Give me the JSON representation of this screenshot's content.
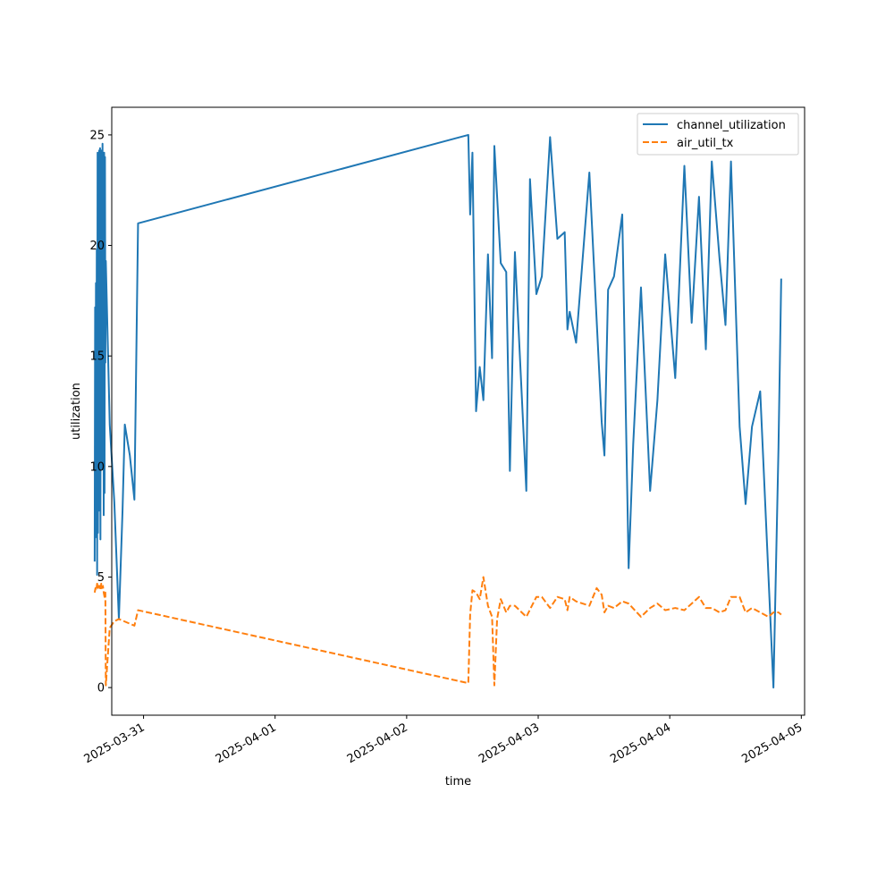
{
  "chart_data": {
    "type": "line",
    "title": "",
    "xlabel": "time",
    "ylabel": "utilization",
    "x_axis_type": "datetime",
    "xlim": [
      "2025-03-30T18:12",
      "2025-04-05T00:36"
    ],
    "ylim": [
      -1.25,
      26.25
    ],
    "x_ticks": [
      "2025-03-31",
      "2025-04-01",
      "2025-04-02",
      "2025-04-03",
      "2025-04-04",
      "2025-04-05"
    ],
    "y_ticks": [
      0,
      5,
      10,
      15,
      20,
      25
    ],
    "grid": false,
    "legend_position": "upper right",
    "series": [
      {
        "name": "channel_utilization",
        "color": "#1f77b4",
        "line_style": "solid",
        "points": [
          [
            "2025-03-30T15:05",
            5.7
          ],
          [
            "2025-03-30T15:10",
            17.2
          ],
          [
            "2025-03-30T15:14",
            6.8
          ],
          [
            "2025-03-30T15:19",
            18.3
          ],
          [
            "2025-03-30T15:23",
            9.8
          ],
          [
            "2025-03-30T15:28",
            19.8
          ],
          [
            "2025-03-30T15:32",
            5.1
          ],
          [
            "2025-03-30T15:37",
            24.2
          ],
          [
            "2025-03-30T15:41",
            7.0
          ],
          [
            "2025-03-30T15:46",
            22.5
          ],
          [
            "2025-03-30T15:50",
            8.0
          ],
          [
            "2025-03-30T15:55",
            24.3
          ],
          [
            "2025-03-30T15:59",
            12.3
          ],
          [
            "2025-03-30T16:04",
            24.4
          ],
          [
            "2025-03-30T16:08",
            6.7
          ],
          [
            "2025-03-30T16:13",
            23.5
          ],
          [
            "2025-03-30T16:17",
            11.0
          ],
          [
            "2025-03-30T16:22",
            24.3
          ],
          [
            "2025-03-30T16:26",
            9.9
          ],
          [
            "2025-03-30T16:31",
            24.6
          ],
          [
            "2025-03-30T16:35",
            10.2
          ],
          [
            "2025-03-30T16:40",
            23.9
          ],
          [
            "2025-03-30T16:44",
            7.8
          ],
          [
            "2025-03-30T16:49",
            24.2
          ],
          [
            "2025-03-30T16:53",
            8.8
          ],
          [
            "2025-03-30T16:58",
            24.0
          ],
          [
            "2025-03-30T17:02",
            14.7
          ],
          [
            "2025-03-30T17:07",
            19.3
          ],
          [
            "2025-03-30T17:50",
            11.9
          ],
          [
            "2025-03-30T18:40",
            8.4
          ],
          [
            "2025-03-30T19:30",
            3.1
          ],
          [
            "2025-03-30T20:10",
            8.0
          ],
          [
            "2025-03-30T20:35",
            11.9
          ],
          [
            "2025-03-30T21:30",
            10.5
          ],
          [
            "2025-03-30T22:20",
            8.5
          ],
          [
            "2025-03-30T23:00",
            21.0
          ],
          [
            "2025-04-02T11:15",
            25.0
          ],
          [
            "2025-04-02T11:35",
            21.4
          ],
          [
            "2025-04-02T12:00",
            24.2
          ],
          [
            "2025-04-02T12:40",
            12.5
          ],
          [
            "2025-04-02T13:20",
            14.5
          ],
          [
            "2025-04-02T14:00",
            13.0
          ],
          [
            "2025-04-02T14:50",
            19.6
          ],
          [
            "2025-04-02T15:35",
            14.9
          ],
          [
            "2025-04-02T16:00",
            24.5
          ],
          [
            "2025-04-02T17:10",
            19.2
          ],
          [
            "2025-04-02T18:10",
            18.8
          ],
          [
            "2025-04-02T18:50",
            9.8
          ],
          [
            "2025-04-02T19:45",
            19.7
          ],
          [
            "2025-04-02T21:50",
            8.9
          ],
          [
            "2025-04-02T22:30",
            23.0
          ],
          [
            "2025-04-02T23:40",
            17.8
          ],
          [
            "2025-04-03T00:40",
            18.6
          ],
          [
            "2025-04-03T02:10",
            24.9
          ],
          [
            "2025-04-03T03:30",
            20.3
          ],
          [
            "2025-04-03T04:50",
            20.6
          ],
          [
            "2025-04-03T05:20",
            16.2
          ],
          [
            "2025-04-03T05:45",
            17.0
          ],
          [
            "2025-04-03T06:55",
            15.6
          ],
          [
            "2025-04-03T09:20",
            23.3
          ],
          [
            "2025-04-03T11:35",
            12.0
          ],
          [
            "2025-04-03T12:05",
            10.5
          ],
          [
            "2025-04-03T12:45",
            18.0
          ],
          [
            "2025-04-03T13:50",
            18.6
          ],
          [
            "2025-04-03T15:20",
            21.4
          ],
          [
            "2025-04-03T16:30",
            5.4
          ],
          [
            "2025-04-03T17:20",
            11.0
          ],
          [
            "2025-04-03T18:45",
            18.1
          ],
          [
            "2025-04-03T20:25",
            8.9
          ],
          [
            "2025-04-03T21:45",
            13.0
          ],
          [
            "2025-04-03T23:10",
            19.6
          ],
          [
            "2025-04-04T01:00",
            14.0
          ],
          [
            "2025-04-04T02:40",
            23.6
          ],
          [
            "2025-04-04T04:00",
            16.5
          ],
          [
            "2025-04-04T05:20",
            22.2
          ],
          [
            "2025-04-04T06:35",
            15.3
          ],
          [
            "2025-04-04T07:40",
            23.8
          ],
          [
            "2025-04-04T09:05",
            19.4
          ],
          [
            "2025-04-04T10:10",
            16.4
          ],
          [
            "2025-04-04T11:10",
            23.8
          ],
          [
            "2025-04-04T12:45",
            11.8
          ],
          [
            "2025-04-04T13:50",
            8.3
          ],
          [
            "2025-04-04T15:00",
            11.8
          ],
          [
            "2025-04-04T16:30",
            13.4
          ],
          [
            "2025-04-04T18:55",
            0.0
          ],
          [
            "2025-04-04T19:50",
            10.8
          ],
          [
            "2025-04-04T20:20",
            18.5
          ]
        ]
      },
      {
        "name": "air_util_tx",
        "color": "#ff7f0e",
        "line_style": "dashed",
        "points": [
          [
            "2025-03-30T15:05",
            4.3
          ],
          [
            "2025-03-30T15:14",
            4.5
          ],
          [
            "2025-03-30T15:23",
            4.4
          ],
          [
            "2025-03-30T15:32",
            4.7
          ],
          [
            "2025-03-30T15:41",
            4.5
          ],
          [
            "2025-03-30T15:50",
            4.6
          ],
          [
            "2025-03-30T15:59",
            4.6
          ],
          [
            "2025-03-30T16:08",
            4.4
          ],
          [
            "2025-03-30T16:17",
            4.7
          ],
          [
            "2025-03-30T16:26",
            4.5
          ],
          [
            "2025-03-30T16:35",
            4.6
          ],
          [
            "2025-03-30T16:44",
            4.3
          ],
          [
            "2025-03-30T16:53",
            4.1
          ],
          [
            "2025-03-30T17:02",
            4.3
          ],
          [
            "2025-03-30T17:07",
            0.1
          ],
          [
            "2025-03-30T17:50",
            2.7
          ],
          [
            "2025-03-30T18:40",
            3.0
          ],
          [
            "2025-03-30T19:30",
            3.1
          ],
          [
            "2025-03-30T22:20",
            2.8
          ],
          [
            "2025-03-30T23:00",
            3.5
          ],
          [
            "2025-04-02T11:15",
            0.2
          ],
          [
            "2025-04-02T11:35",
            3.3
          ],
          [
            "2025-04-02T12:00",
            4.4
          ],
          [
            "2025-04-02T12:40",
            4.3
          ],
          [
            "2025-04-02T13:20",
            4.0
          ],
          [
            "2025-04-02T14:00",
            5.0
          ],
          [
            "2025-04-02T14:50",
            3.7
          ],
          [
            "2025-04-02T15:35",
            3.2
          ],
          [
            "2025-04-02T16:00",
            0.1
          ],
          [
            "2025-04-02T16:30",
            3.1
          ],
          [
            "2025-04-02T17:10",
            4.0
          ],
          [
            "2025-04-02T18:10",
            3.4
          ],
          [
            "2025-04-02T18:50",
            3.7
          ],
          [
            "2025-04-02T19:45",
            3.7
          ],
          [
            "2025-04-02T21:50",
            3.2
          ],
          [
            "2025-04-02T23:40",
            4.1
          ],
          [
            "2025-04-03T00:40",
            4.1
          ],
          [
            "2025-04-03T02:10",
            3.6
          ],
          [
            "2025-04-03T03:30",
            4.1
          ],
          [
            "2025-04-03T04:50",
            4.0
          ],
          [
            "2025-04-03T05:20",
            3.5
          ],
          [
            "2025-04-03T05:45",
            4.1
          ],
          [
            "2025-04-03T06:55",
            3.9
          ],
          [
            "2025-04-03T09:20",
            3.7
          ],
          [
            "2025-04-03T10:40",
            4.5
          ],
          [
            "2025-04-03T11:35",
            4.2
          ],
          [
            "2025-04-03T12:05",
            3.4
          ],
          [
            "2025-04-03T12:45",
            3.7
          ],
          [
            "2025-04-03T13:50",
            3.6
          ],
          [
            "2025-04-03T15:20",
            3.9
          ],
          [
            "2025-04-03T16:30",
            3.8
          ],
          [
            "2025-04-03T18:45",
            3.2
          ],
          [
            "2025-04-03T20:25",
            3.6
          ],
          [
            "2025-04-03T21:45",
            3.8
          ],
          [
            "2025-04-03T23:10",
            3.5
          ],
          [
            "2025-04-04T01:00",
            3.6
          ],
          [
            "2025-04-04T02:40",
            3.5
          ],
          [
            "2025-04-04T05:20",
            4.1
          ],
          [
            "2025-04-04T06:35",
            3.6
          ],
          [
            "2025-04-04T07:40",
            3.6
          ],
          [
            "2025-04-04T09:05",
            3.4
          ],
          [
            "2025-04-04T10:10",
            3.5
          ],
          [
            "2025-04-04T11:10",
            4.1
          ],
          [
            "2025-04-04T12:45",
            4.1
          ],
          [
            "2025-04-04T13:50",
            3.4
          ],
          [
            "2025-04-04T15:00",
            3.6
          ],
          [
            "2025-04-04T16:30",
            3.4
          ],
          [
            "2025-04-04T18:00",
            3.2
          ],
          [
            "2025-04-04T18:55",
            3.4
          ],
          [
            "2025-04-04T19:50",
            3.4
          ],
          [
            "2025-04-04T20:20",
            3.3
          ]
        ]
      }
    ]
  }
}
